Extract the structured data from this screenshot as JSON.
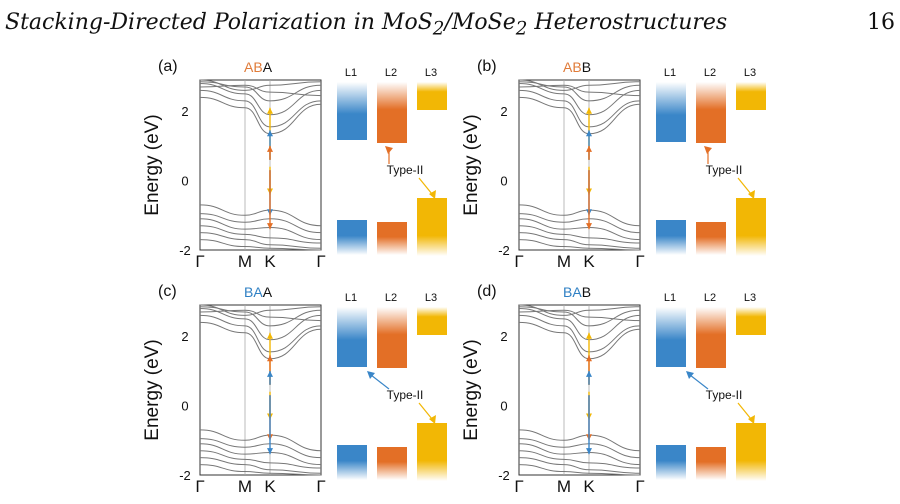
{
  "header": {
    "title_prefix": "Stacking-Directed Polarization in MoS",
    "title_mid": "/MoSe",
    "title_suffix": " Heterostructures",
    "sub": "2",
    "page_number": "16"
  },
  "figure": {
    "ylabel": "Energy (eV)",
    "yticks": [
      "2",
      "0",
      "-2"
    ],
    "kpoints": [
      "Γ",
      "M",
      "K",
      "Γ"
    ],
    "layer_labels": [
      "L1",
      "L2",
      "L3"
    ],
    "type_label": "Type-II",
    "panels": [
      {
        "label": "(a)",
        "stack_colored": "AB",
        "stack_last": "A",
        "stack_color": "#e07b39"
      },
      {
        "label": "(b)",
        "stack_colored": "AB",
        "stack_last": "B",
        "stack_color": "#e07b39"
      },
      {
        "label": "(c)",
        "stack_colored": "BA",
        "stack_last": "A",
        "stack_color": "#2f80c4"
      },
      {
        "label": "(d)",
        "stack_colored": "BA",
        "stack_last": "B",
        "stack_color": "#2f80c4"
      }
    ],
    "colors": {
      "blue": "#3a86c8",
      "orange": "#e36f26",
      "yellow": "#f2b705",
      "line": "#777777"
    }
  }
}
